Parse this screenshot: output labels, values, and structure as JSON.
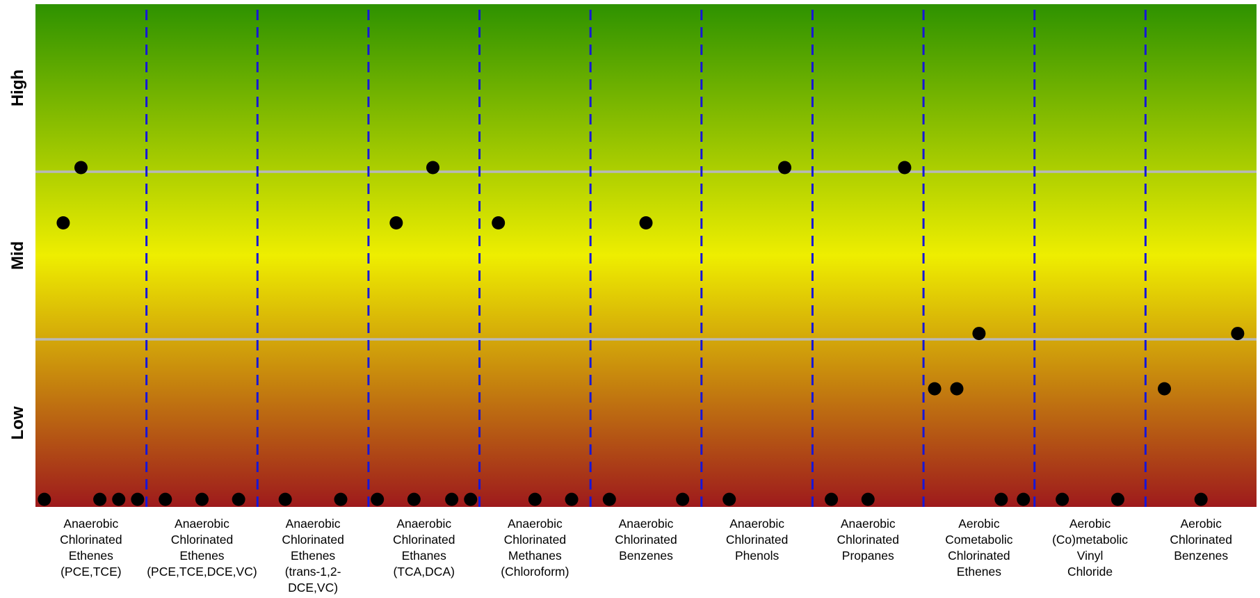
{
  "chart_data": {
    "type": "scatter",
    "title": "",
    "xlabel": "",
    "ylabel": "",
    "y_levels": [
      "Low",
      "Mid",
      "High"
    ],
    "ylim": [
      0,
      1
    ],
    "grid": "horizontal lines at level boundaries",
    "background_gradient": {
      "top": "#2e9200",
      "middle": "#eeee00",
      "bottom": "#9e1a1c"
    },
    "divider_color": "#1616d8",
    "gridline_color": "#b8b8b8",
    "point_color": "#000000",
    "categories": [
      "Anaerobic Chlorinated Ethenes (PCE,TCE)",
      "Anaerobic Chlorinated Ethenes (PCE,TCE,DCE,VC)",
      "Anaerobic Chlorinated Ethenes (trans-1,2-DCE,VC)",
      "Anaerobic Chlorinated Ethanes (TCA,DCA)",
      "Anaerobic Chlorinated Methanes (Chloroform)",
      "Anaerobic Chlorinated Benzenes",
      "Anaerobic Chlorinated Phenols",
      "Anaerobic Chlorinated Propanes",
      "Aerobic Cometabolic Chlorinated Ethenes",
      "Aerobic (Co)metabolic Vinyl Chloride",
      "Aerobic Chlorinated Benzenes"
    ],
    "category_label_lines": [
      [
        "Anaerobic",
        "Chlorinated",
        "Ethenes",
        "(PCE,TCE)"
      ],
      [
        "Anaerobic",
        "Chlorinated",
        "Ethenes",
        "(PCE,TCE,DCE,VC)"
      ],
      [
        "Anaerobic",
        "Chlorinated",
        "Ethenes",
        "(trans-1,2-",
        "DCE,VC)"
      ],
      [
        "Anaerobic",
        "Chlorinated",
        "Ethanes",
        "(TCA,DCA)"
      ],
      [
        "Anaerobic",
        "Chlorinated",
        "Methanes",
        "(Chloroform)"
      ],
      [
        "Anaerobic",
        "Chlorinated",
        "Benzenes"
      ],
      [
        "Anaerobic",
        "Chlorinated",
        "Phenols"
      ],
      [
        "Anaerobic",
        "Chlorinated",
        "Propanes"
      ],
      [
        "Aerobic",
        "Cometabolic",
        "Chlorinated",
        "Ethenes"
      ],
      [
        "Aerobic",
        "(Co)metabolic",
        "Vinyl",
        "Chloride"
      ],
      [
        "Aerobic",
        "Chlorinated",
        "Benzenes"
      ]
    ],
    "points": [
      {
        "category": 0,
        "offset": 0.08,
        "y": 0.015
      },
      {
        "category": 0,
        "offset": 0.25,
        "y": 0.565
      },
      {
        "category": 0,
        "offset": 0.41,
        "y": 0.675
      },
      {
        "category": 0,
        "offset": 0.58,
        "y": 0.015
      },
      {
        "category": 0,
        "offset": 0.75,
        "y": 0.015
      },
      {
        "category": 0,
        "offset": 0.92,
        "y": 0.015
      },
      {
        "category": 1,
        "offset": 0.17,
        "y": 0.015
      },
      {
        "category": 1,
        "offset": 0.5,
        "y": 0.015
      },
      {
        "category": 1,
        "offset": 0.83,
        "y": 0.015
      },
      {
        "category": 2,
        "offset": 0.25,
        "y": 0.015
      },
      {
        "category": 2,
        "offset": 0.75,
        "y": 0.015
      },
      {
        "category": 3,
        "offset": 0.08,
        "y": 0.015
      },
      {
        "category": 3,
        "offset": 0.25,
        "y": 0.565
      },
      {
        "category": 3,
        "offset": 0.41,
        "y": 0.015
      },
      {
        "category": 3,
        "offset": 0.58,
        "y": 0.675
      },
      {
        "category": 3,
        "offset": 0.75,
        "y": 0.015
      },
      {
        "category": 3,
        "offset": 0.92,
        "y": 0.015
      },
      {
        "category": 4,
        "offset": 0.17,
        "y": 0.565
      },
      {
        "category": 4,
        "offset": 0.5,
        "y": 0.015
      },
      {
        "category": 4,
        "offset": 0.83,
        "y": 0.015
      },
      {
        "category": 5,
        "offset": 0.17,
        "y": 0.015
      },
      {
        "category": 5,
        "offset": 0.5,
        "y": 0.565
      },
      {
        "category": 5,
        "offset": 0.83,
        "y": 0.015
      },
      {
        "category": 6,
        "offset": 0.25,
        "y": 0.015
      },
      {
        "category": 6,
        "offset": 0.75,
        "y": 0.675
      },
      {
        "category": 7,
        "offset": 0.17,
        "y": 0.015
      },
      {
        "category": 7,
        "offset": 0.5,
        "y": 0.015
      },
      {
        "category": 7,
        "offset": 0.83,
        "y": 0.675
      },
      {
        "category": 8,
        "offset": 0.1,
        "y": 0.235
      },
      {
        "category": 8,
        "offset": 0.3,
        "y": 0.235
      },
      {
        "category": 8,
        "offset": 0.5,
        "y": 0.345
      },
      {
        "category": 8,
        "offset": 0.7,
        "y": 0.015
      },
      {
        "category": 8,
        "offset": 0.9,
        "y": 0.015
      },
      {
        "category": 9,
        "offset": 0.25,
        "y": 0.015
      },
      {
        "category": 9,
        "offset": 0.75,
        "y": 0.015
      },
      {
        "category": 10,
        "offset": 0.17,
        "y": 0.235
      },
      {
        "category": 10,
        "offset": 0.5,
        "y": 0.015
      },
      {
        "category": 10,
        "offset": 0.83,
        "y": 0.345
      }
    ]
  }
}
